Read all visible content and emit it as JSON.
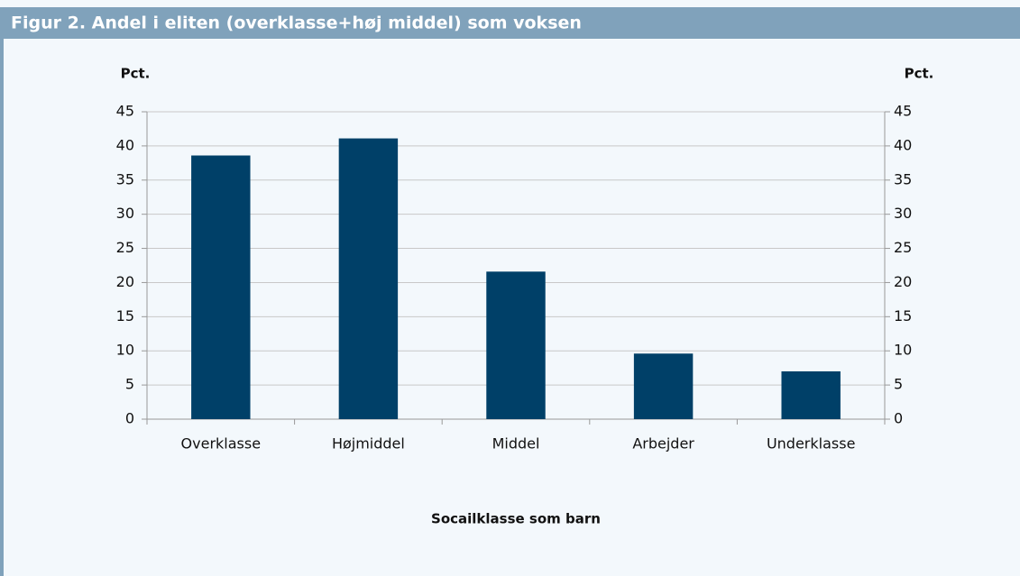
{
  "chart_data": {
    "type": "bar",
    "title": "Figur 2. Andel i eliten (overklasse+høj middel) som voksen",
    "ylabel": "Pct.",
    "y2label": "Pct.",
    "xlabel": "Socailklasse som barn",
    "categories": [
      "Overklasse",
      "Højmiddel",
      "Middel",
      "Arbejder",
      "Underklasse"
    ],
    "values": [
      38.6,
      41.1,
      21.6,
      9.6,
      7.0
    ],
    "color": "#004068",
    "ylim": [
      0,
      45
    ],
    "yticks": [
      0,
      5,
      10,
      15,
      20,
      25,
      30,
      35,
      40,
      45
    ],
    "y2lim": [
      0,
      45
    ],
    "y2ticks": [
      0,
      5,
      10,
      15,
      20,
      25,
      30,
      35,
      40,
      45
    ],
    "grid": true
  }
}
